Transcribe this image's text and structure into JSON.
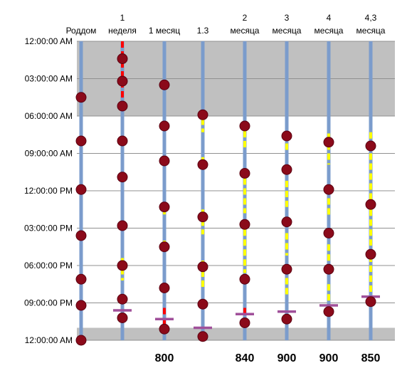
{
  "chart_data": {
    "type": "scatter",
    "title": "",
    "xlabel": "",
    "ylabel": "",
    "y_ticks": [
      "12:00:00 AM",
      "03:00:00 AM",
      "06:00:00 AM",
      "09:00:00 AM",
      "12:00:00 PM",
      "03:00:00 PM",
      "06:00:00 PM",
      "09:00:00 PM",
      "12:00:00 AM"
    ],
    "ylim_hours": [
      0,
      24
    ],
    "y_reversed": true,
    "grid": true,
    "shaded_bands_hours": [
      [
        0,
        6
      ],
      [
        23,
        24
      ]
    ],
    "colors": {
      "timeline": "#7b9ccc",
      "sleep_yellow": "#ffff00",
      "sleep_red": "#ff0000",
      "feed_dot": "#8b0a1a",
      "bedtime_mark": "#a0509a",
      "band": "#c0c0c0",
      "grid": "#909090"
    },
    "columns": [
      {
        "label": [
          "Роддом"
        ],
        "total": "",
        "feeds_hours": [
          4.5,
          8,
          11.9,
          15.6,
          19.1,
          21.2,
          24
        ],
        "bedtime_hour": null,
        "segments": []
      },
      {
        "label": [
          "1",
          "неделя"
        ],
        "total": "",
        "feeds_hours": [
          1.4,
          3.2,
          5.2,
          8,
          10.9,
          14.8,
          18,
          20.7,
          22.2
        ],
        "bedtime_hour": 21.6,
        "segments": [
          {
            "from": 0,
            "to": 5.2,
            "color": "red"
          },
          {
            "from": 10.7,
            "to": 11.3,
            "color": "yellow"
          },
          {
            "from": 17.4,
            "to": 19.2,
            "color": "yellow"
          }
        ]
      },
      {
        "label": [
          "1 месяц"
        ],
        "total": "800",
        "feeds_hours": [
          3.5,
          6.8,
          9.6,
          13.3,
          16.5,
          19.8,
          23.1
        ],
        "bedtime_hour": 22.3,
        "segments": [
          {
            "from": 6.4,
            "to": 7.0,
            "color": "yellow"
          },
          {
            "from": 9.4,
            "to": 10.2,
            "color": "yellow"
          },
          {
            "from": 12.9,
            "to": 13.9,
            "color": "yellow"
          },
          {
            "from": 16.0,
            "to": 16.7,
            "color": "yellow"
          },
          {
            "from": 21.4,
            "to": 23.0,
            "color": "red"
          }
        ]
      },
      {
        "label": [
          "1.3"
        ],
        "total": "",
        "feeds_hours": [
          5.9,
          9.9,
          14.1,
          18.1,
          21.1,
          23.7
        ],
        "bedtime_hour": 23,
        "segments": [
          {
            "from": 6.2,
            "to": 7.3,
            "color": "yellow"
          },
          {
            "from": 9.3,
            "to": 10.2,
            "color": "yellow"
          },
          {
            "from": 13.5,
            "to": 15.5,
            "color": "yellow"
          },
          {
            "from": 17.6,
            "to": 19.9,
            "color": "yellow"
          }
        ]
      },
      {
        "label": [
          "2",
          "месяца"
        ],
        "total": "840",
        "feeds_hours": [
          6.8,
          10.6,
          14.7,
          19.1,
          22.6
        ],
        "bedtime_hour": 21.9,
        "segments": [
          {
            "from": 7.2,
            "to": 8.8,
            "color": "yellow"
          },
          {
            "from": 11.0,
            "to": 13.8,
            "color": "yellow"
          },
          {
            "from": 15.1,
            "to": 18.6,
            "color": "yellow"
          },
          {
            "from": 21.4,
            "to": 22.0,
            "color": "red"
          }
        ]
      },
      {
        "label": [
          "3",
          "месяца"
        ],
        "total": "900",
        "feeds_hours": [
          7.6,
          10.3,
          14.5,
          18.3,
          22.3
        ],
        "bedtime_hour": 21.7,
        "segments": [
          {
            "from": 8.2,
            "to": 9.0,
            "color": "yellow"
          },
          {
            "from": 11.2,
            "to": 13.3,
            "color": "yellow"
          },
          {
            "from": 15.4,
            "to": 17.2,
            "color": "yellow"
          },
          {
            "from": 19.0,
            "to": 20.6,
            "color": "yellow"
          }
        ]
      },
      {
        "label": [
          "4",
          "месяца"
        ],
        "total": "900",
        "feeds_hours": [
          8.1,
          11.9,
          15.4,
          18.3,
          21.7
        ],
        "bedtime_hour": 21.2,
        "segments": [
          {
            "from": 7.4,
            "to": 9.9,
            "color": "yellow"
          },
          {
            "from": 11.8,
            "to": 14.1,
            "color": "yellow"
          },
          {
            "from": 16.3,
            "to": 17.9,
            "color": "yellow"
          },
          {
            "from": 19.5,
            "to": 21.1,
            "color": "yellow"
          }
        ]
      },
      {
        "label": [
          "4,3",
          "месяца"
        ],
        "total": "850",
        "feeds_hours": [
          8.4,
          13.1,
          17.1,
          20.9
        ],
        "bedtime_hour": 20.5,
        "segments": [
          {
            "from": 7.3,
            "to": 8.6,
            "color": "yellow"
          },
          {
            "from": 9.0,
            "to": 12.7,
            "color": "yellow"
          },
          {
            "from": 13.5,
            "to": 16.4,
            "color": "yellow"
          },
          {
            "from": 17.2,
            "to": 20.3,
            "color": "yellow"
          }
        ]
      }
    ]
  }
}
